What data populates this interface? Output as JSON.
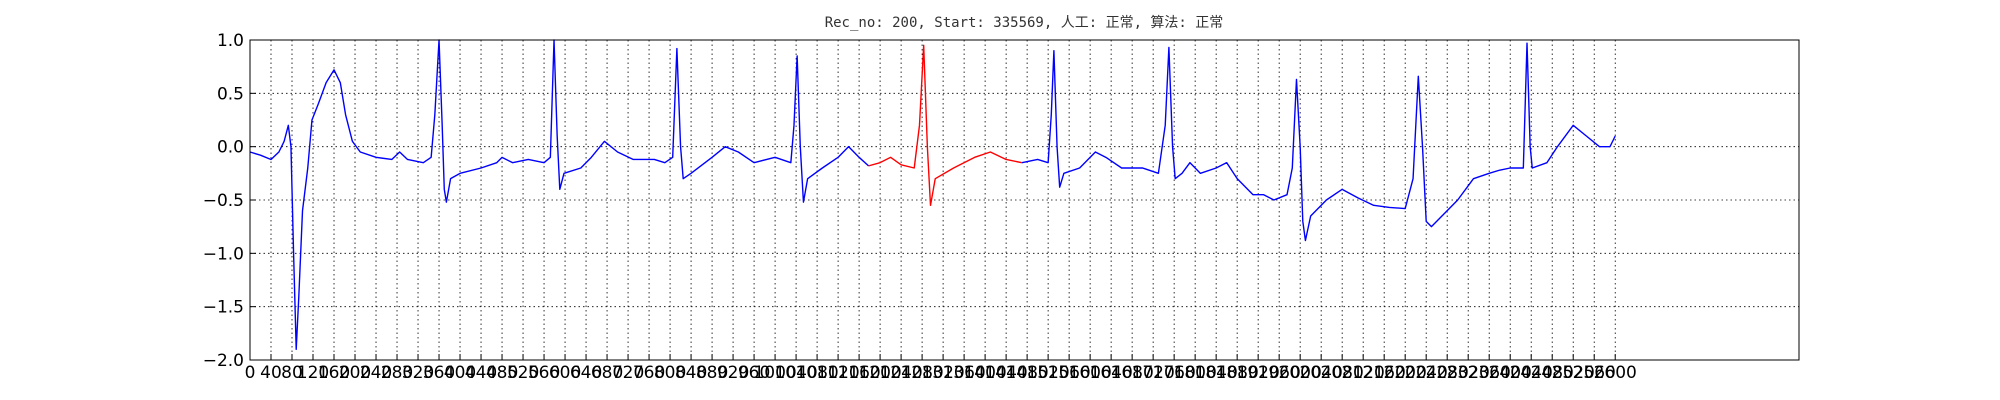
{
  "chart_data": {
    "type": "line",
    "title": "Rec_no: 200, Start: 335569, 人工: 正常, 算法: 正常",
    "xlim": [
      0,
      2950
    ],
    "ylim": [
      -2,
      1
    ],
    "xticks": [
      0,
      40,
      80,
      120,
      160,
      200,
      240,
      280,
      320,
      360,
      400,
      440,
      480,
      520,
      560,
      600,
      640,
      680,
      720,
      760,
      800,
      840,
      880,
      920,
      960,
      1000,
      1040,
      1080,
      1120,
      1160,
      1200,
      1240,
      1280,
      1320,
      1360,
      1400,
      1440,
      1480,
      1520,
      1560,
      1600,
      1640,
      1680,
      1720,
      1760,
      1800,
      1840,
      1880,
      1920,
      1960,
      2000,
      2040,
      2080,
      2120,
      2160,
      2200,
      2240,
      2280,
      2320,
      2360,
      2400,
      2440,
      2480,
      2520,
      2560,
      2600
    ],
    "yticks": [
      {
        "value": -2,
        "label": "−2.0"
      },
      {
        "value": -1.5,
        "label": "−1.5"
      },
      {
        "value": -1,
        "label": "−1.0"
      },
      {
        "value": -0.5,
        "label": "−0.5"
      },
      {
        "value": 0,
        "label": "0.0"
      },
      {
        "value": 0.5,
        "label": "0.5"
      },
      {
        "value": 1,
        "label": "1.0"
      }
    ],
    "grid": true,
    "series": [
      {
        "color": "#0000ff",
        "x": [
          0,
          20,
          40,
          55,
          65,
          73,
          78,
          83,
          88,
          93,
          100,
          110,
          118,
          130,
          145,
          160,
          172,
          182,
          195,
          210,
          240,
          270,
          285,
          300,
          330,
          345,
          352,
          360,
          366,
          370,
          374,
          382,
          400,
          440,
          470,
          480,
          500,
          530,
          560,
          572,
          579,
          585,
          590,
          598,
          630,
          650,
          675,
          700,
          730,
          770,
          790,
          805,
          813,
          820,
          825,
          840,
          880,
          905,
          930,
          960,
          1000,
          1030,
          1036,
          1042,
          1048,
          1054,
          1062,
          1090,
          1120,
          1140,
          1160,
          1178,
          1320,
          1470,
          1500,
          1520,
          1526,
          1531,
          1537,
          1542,
          1550,
          1580,
          1610,
          1630,
          1660,
          1700,
          1730,
          1743,
          1750,
          1757,
          1762,
          1775,
          1790,
          1810,
          1840,
          1860,
          1880,
          1910,
          1930,
          1950,
          1975,
          1985,
          1993,
          2000,
          2005,
          2010,
          2020,
          2050,
          2080,
          2110,
          2140,
          2170,
          2200,
          2215,
          2225,
          2233,
          2240,
          2250,
          2270,
          2300,
          2330,
          2360,
          2380,
          2400,
          2425,
          2432,
          2438,
          2442,
          2470,
          2490,
          2520,
          2545,
          2570,
          2590,
          2600
        ],
        "values": [
          -0.05,
          -0.08,
          -0.12,
          -0.05,
          0.05,
          0.2,
          0.0,
          -1.0,
          -1.9,
          -1.4,
          -0.6,
          -0.2,
          0.25,
          0.4,
          0.6,
          0.72,
          0.6,
          0.3,
          0.05,
          -0.05,
          -0.1,
          -0.12,
          -0.05,
          -0.12,
          -0.15,
          -0.1,
          0.3,
          1.0,
          0.2,
          -0.4,
          -0.52,
          -0.3,
          -0.25,
          -0.2,
          -0.15,
          -0.1,
          -0.15,
          -0.12,
          -0.15,
          -0.1,
          1.0,
          0.1,
          -0.4,
          -0.25,
          -0.2,
          -0.1,
          0.05,
          -0.05,
          -0.12,
          -0.12,
          -0.15,
          -0.1,
          0.92,
          0.0,
          -0.3,
          -0.25,
          -0.1,
          0.0,
          -0.05,
          -0.15,
          -0.1,
          -0.15,
          0.2,
          0.85,
          0.0,
          -0.52,
          -0.3,
          -0.2,
          -0.1,
          0.0,
          -0.1,
          -0.18,
          null,
          -0.15,
          -0.12,
          -0.15,
          0.3,
          0.9,
          0.0,
          -0.38,
          -0.25,
          -0.2,
          -0.05,
          -0.1,
          -0.2,
          -0.2,
          -0.25,
          0.2,
          0.93,
          0.0,
          -0.3,
          -0.25,
          -0.15,
          -0.25,
          -0.2,
          -0.15,
          -0.3,
          -0.45,
          -0.45,
          -0.5,
          -0.45,
          -0.2,
          0.63,
          0.0,
          -0.7,
          -0.88,
          -0.65,
          -0.5,
          -0.4,
          -0.48,
          -0.55,
          -0.57,
          -0.58,
          -0.3,
          0.66,
          0.0,
          -0.7,
          -0.75,
          -0.65,
          -0.5,
          -0.3,
          -0.25,
          -0.22,
          -0.2,
          -0.2,
          0.97,
          0.0,
          -0.2,
          -0.15,
          0.0,
          0.2,
          0.1,
          0.0,
          0.0,
          0.1
        ]
      },
      {
        "color": "#ff0000",
        "x": [
          1178,
          1200,
          1220,
          1240,
          1265,
          1275,
          1283,
          1290,
          1296,
          1305,
          1340,
          1380,
          1410,
          1440,
          1470
        ],
        "values": [
          -0.18,
          -0.15,
          -0.1,
          -0.17,
          -0.2,
          0.2,
          0.95,
          0.0,
          -0.55,
          -0.3,
          -0.2,
          -0.1,
          -0.05,
          -0.12,
          -0.15
        ]
      }
    ]
  }
}
